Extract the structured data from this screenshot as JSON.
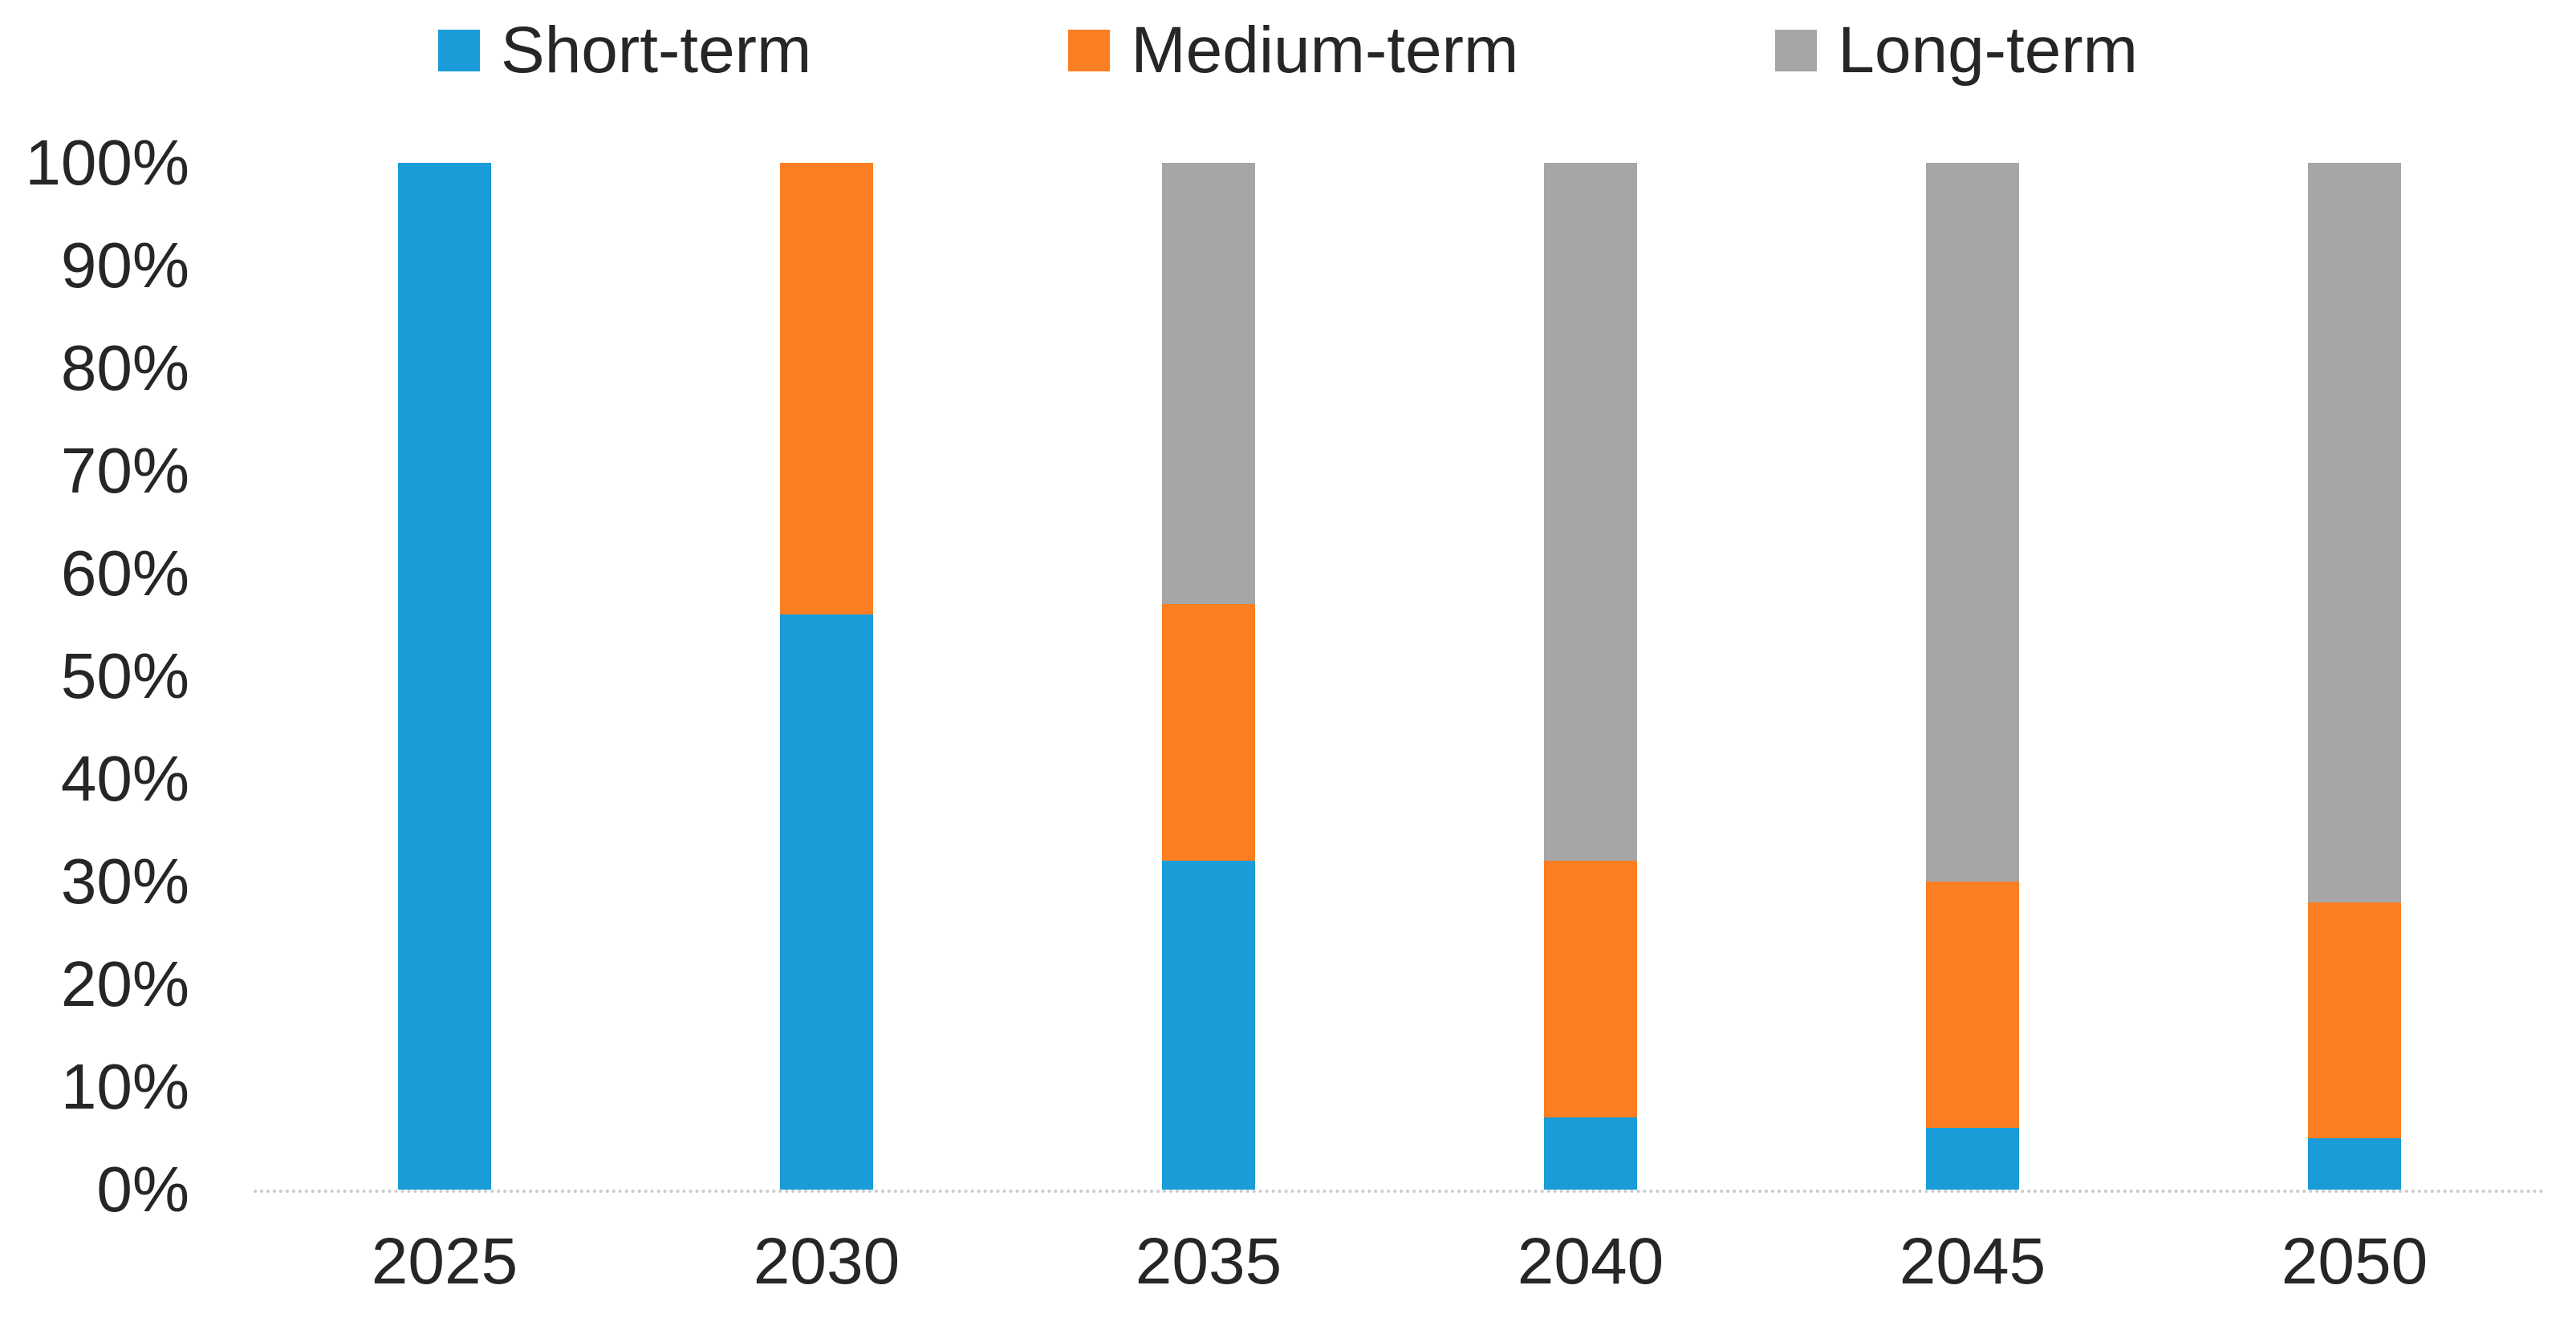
{
  "chart_data": {
    "type": "bar",
    "subtype": "stacked-100-percent-column",
    "title": "",
    "categories": [
      "2025",
      "2030",
      "2035",
      "2040",
      "2045",
      "2050"
    ],
    "series": [
      {
        "name": "Short-term",
        "color": "#199CD8",
        "values": [
          100,
          56,
          32,
          7,
          6,
          5
        ]
      },
      {
        "name": "Medium-term",
        "color": "#FC7E23",
        "values": [
          0,
          44,
          25,
          25,
          24,
          23
        ]
      },
      {
        "name": "Long-term",
        "color": "#A6A6A6",
        "values": [
          0,
          0,
          43,
          68,
          70,
          72
        ]
      }
    ],
    "xlabel": "",
    "ylabel": "",
    "ylim": [
      0,
      100
    ],
    "yticks": [
      "100%",
      "90%",
      "80%",
      "70%",
      "60%",
      "50%",
      "40%",
      "30%",
      "20%",
      "10%",
      "0%"
    ],
    "legend_position": "top",
    "gridlines": false
  },
  "colors": {
    "text": "#262626",
    "axis_line": "#cbcbcb",
    "background": "#ffffff"
  }
}
